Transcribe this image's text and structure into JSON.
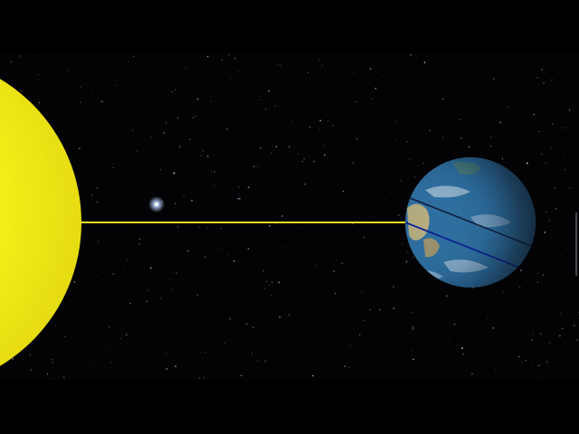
{
  "scene": {
    "subject": "sun-earth-diagram",
    "colors": {
      "space": "#030305",
      "sun": "#f7f21a",
      "sun_highlight": "#fffb7a",
      "beam": "#e8e21f",
      "ocean": "#2f6fa0",
      "land": "#c9b57a",
      "night_side": "#0d1824",
      "tilt_line_upper": "#0c1a3a",
      "tilt_line_lower": "#0a1f8f",
      "bright_star": "#bcd2ff"
    },
    "icons": {
      "sun": "sun-disc",
      "earth": "earth-globe",
      "star": "bright-star"
    }
  }
}
